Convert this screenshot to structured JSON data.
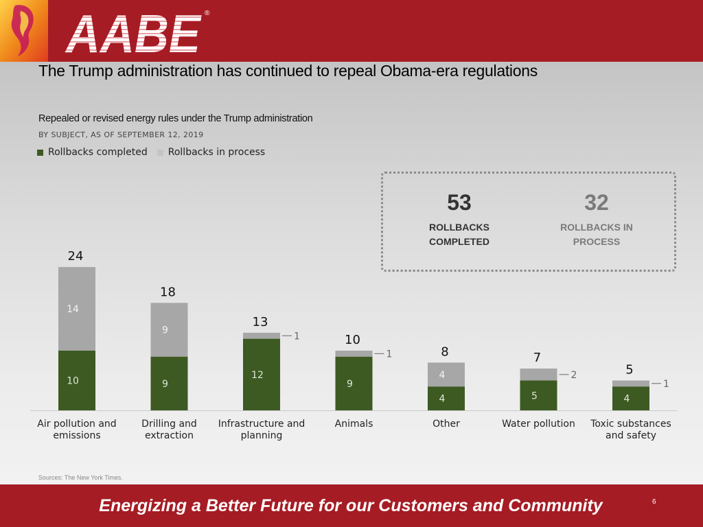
{
  "header": {
    "logo_text": "AABE",
    "registered_mark": "®"
  },
  "slide_title": "The Trump administration has continued to repeal Obama-era regulations",
  "chart_title": "Repealed or revised energy rules under the Trump administration",
  "chart_subtitle": "BY SUBJECT, AS OF SEPTEMBER 12, 2019",
  "legend": [
    {
      "label": "Rollbacks completed",
      "color": "#3c5a22"
    },
    {
      "label": "Rollbacks in process",
      "color": "#a7a7a7"
    }
  ],
  "summary": {
    "completed": {
      "value": "53",
      "label_line1": "ROLLBACKS",
      "label_line2": "COMPLETED",
      "color": "#333333"
    },
    "in_process": {
      "value": "32",
      "label_line1": "ROLLBACKS IN",
      "label_line2": "PROCESS",
      "color": "#7a7a7a"
    }
  },
  "chart_data": {
    "type": "bar",
    "stacked": true,
    "categories": [
      [
        "Air pollution and",
        "emissions"
      ],
      [
        "Drilling and",
        "extraction"
      ],
      [
        "Infrastructure and",
        "planning"
      ],
      [
        "Animals"
      ],
      [
        "Other"
      ],
      [
        "Water pollution"
      ],
      [
        "Toxic substances",
        "and safety"
      ]
    ],
    "series": [
      {
        "name": "Rollbacks completed",
        "values": [
          10,
          9,
          12,
          9,
          4,
          5,
          4
        ],
        "color": "#3c5a22"
      },
      {
        "name": "Rollbacks in process",
        "values": [
          14,
          9,
          1,
          1,
          4,
          2,
          1
        ],
        "color": "#a7a7a7"
      }
    ],
    "totals": [
      24,
      18,
      13,
      10,
      8,
      7,
      5
    ],
    "ylim": [
      0,
      24
    ],
    "grid": false,
    "legend_position": "top-left"
  },
  "sources": "Sources: The New York Times.",
  "footer": {
    "tagline": "Energizing a Better Future for our Customers and Community",
    "page_number": "6"
  }
}
